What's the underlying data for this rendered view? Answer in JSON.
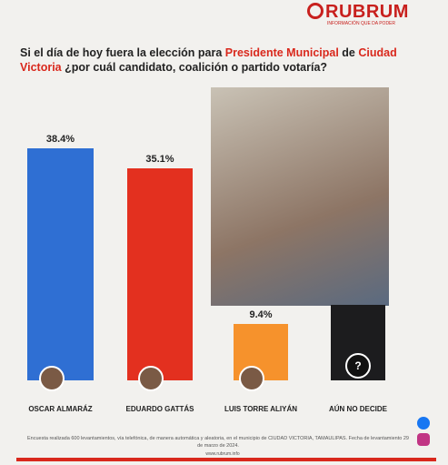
{
  "brand": {
    "logo": "RUBRUM",
    "tagline": "INFORMACIÓN QUE DA PODER"
  },
  "chart_data": {
    "type": "bar",
    "title": [
      "Si el día de hoy fuera la elección para ",
      "Presidente Municipal",
      " de ",
      "Ciudad Victoria",
      " ¿por cuál candidato, coalición o partido votaría?"
    ],
    "categories": [
      "OSCAR ALMARÁZ",
      "EDUARDO GATTÁS",
      "LUIS TORRE ALIYÁN",
      "AÚN NO DECIDE"
    ],
    "values": [
      38.4,
      35.1,
      9.4,
      12.5
    ],
    "value_labels": [
      "38.4%",
      "35.1%",
      "9.4%",
      null
    ],
    "colors": [
      "#2f6fd3",
      "#e3301f",
      "#f6922c",
      "#1c1c1e"
    ],
    "undecided_symbol": "?"
  },
  "footer": {
    "note": "Encuesta realizada 600 levantamientos, vía telefónica, de manera automática y aleatoria, en el municipio de CIUDAD VICTORIA, TAMAULIPAS. Fecha de levantamiento 29 de marzo de 2024.",
    "url": "www.rubrum.info"
  }
}
